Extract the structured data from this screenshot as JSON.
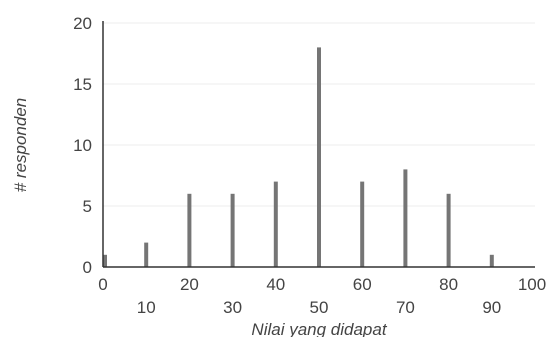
{
  "chart_data": {
    "type": "bar",
    "title": "",
    "xlabel": "Nilai yang didapat",
    "ylabel": "# responden",
    "x": [
      0,
      10,
      20,
      30,
      40,
      50,
      60,
      70,
      80,
      90
    ],
    "values": [
      1,
      2,
      6,
      6,
      7,
      18,
      7,
      8,
      6,
      1
    ],
    "xlim": [
      0,
      100
    ],
    "ylim": [
      0,
      20
    ],
    "x_ticks": [
      "0",
      "10",
      "20",
      "30",
      "40",
      "50",
      "60",
      "70",
      "80",
      "90",
      "100"
    ],
    "y_ticks": [
      "0",
      "5",
      "10",
      "15",
      "20"
    ],
    "grid": true,
    "bar_color": "#757575"
  }
}
